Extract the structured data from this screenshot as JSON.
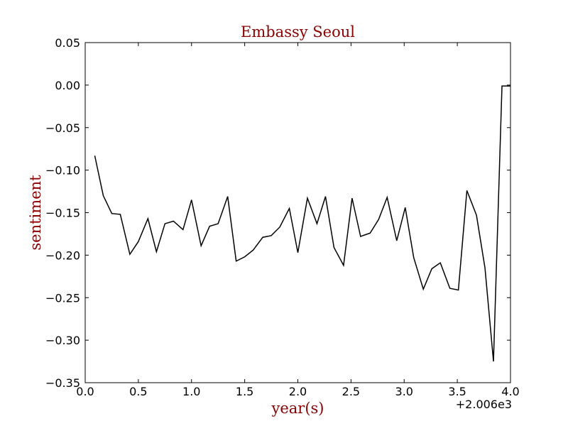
{
  "chart_data": {
    "type": "line",
    "title": "Embassy Seoul",
    "xlabel": "year(s)",
    "ylabel": "sentiment",
    "x_offset_label": "+2.006e3",
    "xlim": [
      0.0,
      4.0
    ],
    "ylim": [
      -0.35,
      0.05
    ],
    "x_ticks": [
      0.0,
      0.5,
      1.0,
      1.5,
      2.0,
      2.5,
      3.0,
      3.5,
      4.0
    ],
    "x_tick_labels": [
      "0.0",
      "0.5",
      "1.0",
      "1.5",
      "2.0",
      "2.5",
      "3.0",
      "3.5",
      "4.0"
    ],
    "y_ticks": [
      0.05,
      0.0,
      -0.05,
      -0.1,
      -0.15,
      -0.2,
      -0.25,
      -0.3,
      -0.35
    ],
    "y_tick_labels": [
      "0.05",
      "0.00",
      "−0.05",
      "−0.10",
      "−0.15",
      "−0.20",
      "−0.25",
      "−0.30",
      "−0.35"
    ],
    "grid": false,
    "series": [
      {
        "color": "#000000",
        "x": [
          0.09,
          0.17,
          0.25,
          0.33,
          0.42,
          0.5,
          0.59,
          0.67,
          0.75,
          0.83,
          0.92,
          1.0,
          1.09,
          1.17,
          1.25,
          1.34,
          1.42,
          1.5,
          1.58,
          1.67,
          1.75,
          1.83,
          1.92,
          2.0,
          2.09,
          2.18,
          2.26,
          2.34,
          2.43,
          2.51,
          2.59,
          2.68,
          2.76,
          2.84,
          2.93,
          3.01,
          3.09,
          3.18,
          3.26,
          3.34,
          3.43,
          3.51,
          3.59,
          3.68,
          3.76,
          3.84,
          3.92,
          4.0
        ],
        "y": [
          -0.083,
          -0.13,
          -0.151,
          -0.152,
          -0.199,
          -0.184,
          -0.157,
          -0.196,
          -0.163,
          -0.16,
          -0.17,
          -0.135,
          -0.189,
          -0.166,
          -0.163,
          -0.131,
          -0.207,
          -0.202,
          -0.194,
          -0.179,
          -0.177,
          -0.167,
          -0.145,
          -0.197,
          -0.133,
          -0.163,
          -0.131,
          -0.191,
          -0.212,
          -0.133,
          -0.178,
          -0.174,
          -0.158,
          -0.132,
          -0.183,
          -0.144,
          -0.203,
          -0.24,
          -0.216,
          -0.209,
          -0.239,
          -0.241,
          -0.124,
          -0.153,
          -0.215,
          -0.325,
          -0.001,
          -0.001
        ]
      }
    ]
  },
  "colors": {
    "title": "#8b0000",
    "axis_title": "#8b0000",
    "line": "#000000"
  }
}
